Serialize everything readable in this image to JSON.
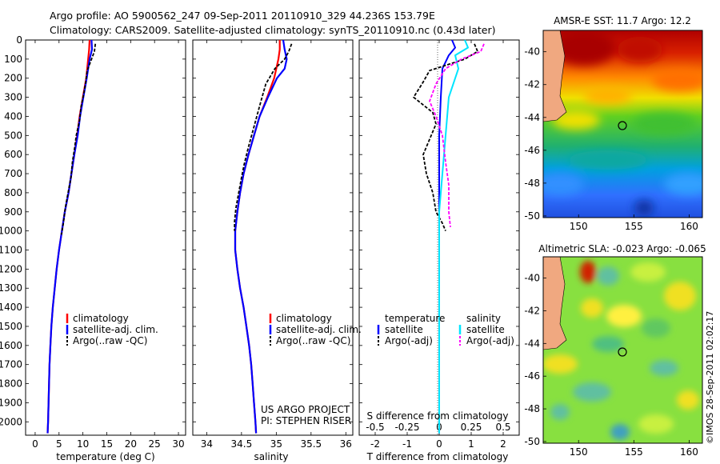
{
  "header": {
    "line1": "Argo profile: AO 5900562_247 09-Sep-2011 20110910_329 44.236S 153.79E",
    "line2": "Climatology: CARS2009. Satellite-adjusted climatology: synTS_20110910.nc (0.43d later)"
  },
  "colors": {
    "climatology": "#ff0000",
    "satellite": "#0000ff",
    "argo": "#000000",
    "satellite_s": "#00e5ff",
    "argo_s": "#ff00ff"
  },
  "chart_data": [
    {
      "type": "line",
      "id": "temperature",
      "xlabel": "temperature (deg C)",
      "xlim": [
        -2,
        31.5
      ],
      "ylim": [
        2070,
        0
      ],
      "xticks": [
        0,
        5,
        10,
        15,
        20,
        25,
        30
      ],
      "yticks": [
        0,
        100,
        200,
        300,
        400,
        500,
        600,
        700,
        800,
        900,
        1000,
        1100,
        1200,
        1300,
        1400,
        1500,
        1600,
        1700,
        1800,
        1900,
        2000
      ],
      "legend": [
        "climatology",
        "satellite-adj. clim.",
        "Argo(..raw -QC)"
      ],
      "series": [
        {
          "name": "climatology",
          "points": [
            [
              11.4,
              0
            ],
            [
              11.3,
              50
            ],
            [
              11.1,
              100
            ],
            [
              10.7,
              200
            ],
            [
              10,
              300
            ],
            [
              9.3,
              400
            ],
            [
              8.8,
              500
            ],
            [
              8.2,
              600
            ],
            [
              7.6,
              700
            ],
            [
              7,
              800
            ],
            [
              6.2,
              900
            ],
            [
              5.6,
              1000
            ],
            [
              5,
              1100
            ],
            [
              4.5,
              1200
            ],
            [
              4.1,
              1300
            ],
            [
              3.7,
              1400
            ],
            [
              3.4,
              1500
            ],
            [
              3.2,
              1600
            ],
            [
              3,
              1700
            ],
            [
              2.9,
              1800
            ],
            [
              2.8,
              1900
            ],
            [
              2.7,
              2000
            ],
            [
              2.6,
              2060
            ]
          ]
        },
        {
          "name": "satellite-adj. clim.",
          "points": [
            [
              11.8,
              0
            ],
            [
              11.9,
              50
            ],
            [
              11.4,
              100
            ],
            [
              10.8,
              200
            ],
            [
              10.1,
              300
            ],
            [
              9.4,
              400
            ],
            [
              8.9,
              500
            ],
            [
              8.2,
              600
            ],
            [
              7.6,
              700
            ],
            [
              7,
              800
            ],
            [
              6.2,
              900
            ],
            [
              5.6,
              1000
            ],
            [
              5,
              1100
            ],
            [
              4.5,
              1200
            ],
            [
              4.1,
              1300
            ],
            [
              3.7,
              1400
            ],
            [
              3.4,
              1500
            ],
            [
              3.2,
              1600
            ],
            [
              3,
              1700
            ],
            [
              2.9,
              1800
            ],
            [
              2.8,
              1900
            ],
            [
              2.7,
              2000
            ],
            [
              2.6,
              2060
            ]
          ]
        },
        {
          "name": "Argo(..raw -QC)",
          "points": [
            [
              12.6,
              20
            ],
            [
              12.4,
              60
            ],
            [
              11.8,
              100
            ],
            [
              10.9,
              160
            ],
            [
              10.6,
              220
            ],
            [
              10.2,
              280
            ],
            [
              9.6,
              350
            ],
            [
              9.3,
              420
            ],
            [
              8.6,
              500
            ],
            [
              8.3,
              560
            ],
            [
              7.8,
              640
            ],
            [
              7.5,
              720
            ],
            [
              6.9,
              800
            ],
            [
              6.3,
              880
            ],
            [
              5.9,
              960
            ],
            [
              5.5,
              1020
            ]
          ]
        }
      ]
    },
    {
      "type": "line",
      "id": "salinity",
      "xlabel": "salinity",
      "xlim": [
        33.8,
        36.1
      ],
      "ylim": [
        2070,
        0
      ],
      "xticks": [
        34,
        34.5,
        35,
        35.5,
        36
      ],
      "legend": [
        "climatology",
        "satellite-adj. clim.",
        "Argo(..raw -QC)"
      ],
      "annotation": [
        "US ARGO PROJECT",
        "PI: STEPHEN RISER"
      ],
      "series": [
        {
          "name": "climatology",
          "points": [
            [
              35.05,
              0
            ],
            [
              35.05,
              50
            ],
            [
              35.03,
              100
            ],
            [
              34.97,
              200
            ],
            [
              34.87,
              300
            ],
            [
              34.76,
              400
            ],
            [
              34.68,
              500
            ],
            [
              34.6,
              600
            ],
            [
              34.53,
              700
            ],
            [
              34.48,
              800
            ],
            [
              34.44,
              900
            ],
            [
              34.41,
              1000
            ],
            [
              34.41,
              1100
            ],
            [
              34.44,
              1200
            ],
            [
              34.48,
              1300
            ],
            [
              34.53,
              1400
            ],
            [
              34.57,
              1500
            ],
            [
              34.61,
              1600
            ],
            [
              34.64,
              1700
            ],
            [
              34.66,
              1800
            ],
            [
              34.68,
              1900
            ],
            [
              34.7,
              2000
            ],
            [
              34.71,
              2060
            ]
          ]
        },
        {
          "name": "satellite-adj. clim.",
          "points": [
            [
              35.1,
              0
            ],
            [
              35.12,
              50
            ],
            [
              35.15,
              100
            ],
            [
              35.12,
              150
            ],
            [
              35.01,
              200
            ],
            [
              34.88,
              300
            ],
            [
              34.76,
              400
            ],
            [
              34.68,
              500
            ],
            [
              34.6,
              600
            ],
            [
              34.53,
              700
            ],
            [
              34.48,
              800
            ],
            [
              34.44,
              900
            ],
            [
              34.41,
              1000
            ],
            [
              34.41,
              1100
            ],
            [
              34.44,
              1200
            ],
            [
              34.48,
              1300
            ],
            [
              34.53,
              1400
            ],
            [
              34.57,
              1500
            ],
            [
              34.61,
              1600
            ],
            [
              34.64,
              1700
            ],
            [
              34.66,
              1800
            ],
            [
              34.68,
              1900
            ],
            [
              34.7,
              2000
            ],
            [
              34.71,
              2060
            ]
          ]
        },
        {
          "name": "Argo(..raw -QC)",
          "points": [
            [
              35.22,
              20
            ],
            [
              35.18,
              60
            ],
            [
              35.12,
              100
            ],
            [
              34.98,
              150
            ],
            [
              34.85,
              230
            ],
            [
              34.78,
              320
            ],
            [
              34.72,
              400
            ],
            [
              34.66,
              480
            ],
            [
              34.6,
              560
            ],
            [
              34.54,
              650
            ],
            [
              34.5,
              720
            ],
            [
              34.46,
              800
            ],
            [
              34.42,
              880
            ],
            [
              34.4,
              950
            ],
            [
              34.4,
              1000
            ]
          ]
        }
      ]
    },
    {
      "type": "line",
      "id": "difference",
      "xlabel": "T difference from climatology",
      "xlabel_top": "S difference from climatology",
      "xlim": [
        -2.5,
        2.5
      ],
      "ylim": [
        2070,
        0
      ],
      "xticks": [
        -2,
        -1,
        0,
        1,
        2
      ],
      "xticklabels_s": [
        "-0.5",
        "-0.25",
        "0",
        "0.25",
        "0.5"
      ],
      "legend": {
        "temperature_title": "temperature",
        "salinity_title": "salinity",
        "items": [
          "satellite",
          "Argo(-adj)",
          "satellite",
          "Argo(-adj)"
        ]
      },
      "series": [
        {
          "name": "temperature satellite",
          "points": [
            [
              0.4,
              0
            ],
            [
              0.5,
              40
            ],
            [
              0.3,
              80
            ],
            [
              0.1,
              150
            ],
            [
              0.05,
              300
            ],
            [
              0,
              500
            ],
            [
              0,
              1000
            ],
            [
              0,
              1500
            ],
            [
              0,
              2060
            ]
          ]
        },
        {
          "name": "temperature Argo(-adj)",
          "points": [
            [
              1.1,
              20
            ],
            [
              1.2,
              60
            ],
            [
              0.8,
              100
            ],
            [
              -0.3,
              160
            ],
            [
              -0.5,
              220
            ],
            [
              -0.8,
              300
            ],
            [
              -0.2,
              380
            ],
            [
              -0.1,
              440
            ],
            [
              -0.3,
              520
            ],
            [
              -0.5,
              600
            ],
            [
              -0.4,
              700
            ],
            [
              -0.2,
              800
            ],
            [
              -0.1,
              900
            ],
            [
              0.1,
              960
            ],
            [
              0.2,
              1000
            ]
          ]
        },
        {
          "name": "salinity satellite",
          "points": [
            [
              0.8,
              0
            ],
            [
              0.9,
              40
            ],
            [
              0.5,
              80
            ],
            [
              0.6,
              150
            ],
            [
              0.3,
              300
            ],
            [
              0.2,
              500
            ],
            [
              0.1,
              700
            ],
            [
              0,
              900
            ],
            [
              0,
              1200
            ],
            [
              0,
              1500
            ],
            [
              0,
              2060
            ]
          ]
        },
        {
          "name": "salinity Argo(-adj)",
          "points": [
            [
              1.4,
              20
            ],
            [
              1.3,
              60
            ],
            [
              0.7,
              100
            ],
            [
              0.2,
              150
            ],
            [
              -0.1,
              230
            ],
            [
              -0.3,
              320
            ],
            [
              -0.1,
              400
            ],
            [
              0.1,
              500
            ],
            [
              0.2,
              640
            ],
            [
              0.3,
              760
            ],
            [
              0.3,
              900
            ],
            [
              0.35,
              980
            ]
          ]
        }
      ]
    },
    {
      "type": "heatmap",
      "id": "sst-map",
      "title": "AMSR-E SST: 11.7 Argo: 12.2",
      "xticks": [
        150,
        155,
        160
      ],
      "yticks": [
        -40,
        -42,
        -44,
        -46,
        -48,
        -50
      ],
      "marker": [
        153.79,
        -44.236
      ]
    },
    {
      "type": "heatmap",
      "id": "sla-map",
      "title": "Altimetric SLA: -0.023 Argo: -0.065",
      "xticks": [
        150,
        155,
        160
      ],
      "yticks": [
        -40,
        -42,
        -44,
        -46,
        -48,
        -50
      ],
      "marker": [
        153.79,
        -44.236
      ]
    }
  ],
  "footer": {
    "credit": "©IMOS 28-Sep-2011 02:02:17"
  }
}
